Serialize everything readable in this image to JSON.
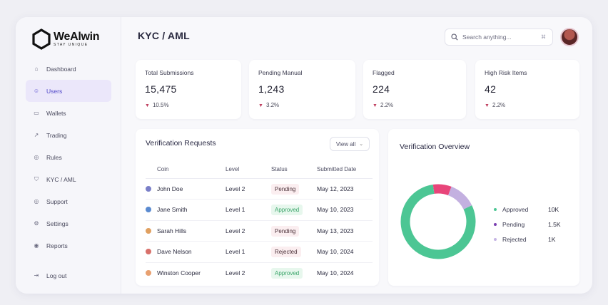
{
  "brand": {
    "name": "WeAlwin",
    "tagline": "STAY UNIQUE"
  },
  "sidebar": {
    "items": [
      {
        "label": "Dashboard",
        "icon": "home-icon",
        "active": false
      },
      {
        "label": "Users",
        "icon": "users-icon",
        "active": true
      },
      {
        "label": "Wallets",
        "icon": "wallet-icon",
        "active": false
      },
      {
        "label": "Trading",
        "icon": "trending-icon",
        "active": false
      },
      {
        "label": "Rules",
        "icon": "rules-icon",
        "active": false
      },
      {
        "label": "KYC / AML",
        "icon": "shield-icon",
        "active": false
      },
      {
        "label": "Support",
        "icon": "support-icon",
        "active": false
      },
      {
        "label": "Settings",
        "icon": "gear-icon",
        "active": false
      },
      {
        "label": "Reports",
        "icon": "report-icon",
        "active": false
      }
    ],
    "logout_label": "Log out"
  },
  "header": {
    "title": "KYC / AML",
    "search_placeholder": "Search anything...",
    "search_shortcut": "⌘"
  },
  "stats": [
    {
      "label": "Total Submissions",
      "value": "15,475",
      "delta": "10.5%"
    },
    {
      "label": "Pending Manual",
      "value": "1,243",
      "delta": "3.2%"
    },
    {
      "label": "Flagged",
      "value": "224",
      "delta": "2.2%"
    },
    {
      "label": "High Risk Items",
      "value": "42",
      "delta": "2.2%"
    }
  ],
  "requests": {
    "title": "Verification Requests",
    "view_all": "View all",
    "columns": [
      "Coin",
      "Level",
      "Status",
      "Submitted Date"
    ],
    "rows": [
      {
        "name": "John Doe",
        "level": "Level 2",
        "status": "Pending",
        "date": "May 12, 2023",
        "dot": "#7a7fc8"
      },
      {
        "name": "Jane Smith",
        "level": "Level 1",
        "status": "Approved",
        "date": "May 10, 2023",
        "dot": "#5a8ad0"
      },
      {
        "name": "Sarah Hills",
        "level": "Level 2",
        "status": "Pending",
        "date": "May 13, 2023",
        "dot": "#e0a060"
      },
      {
        "name": "Dave Nelson",
        "level": "Level 1",
        "status": "Rejected",
        "date": "May 10, 2024",
        "dot": "#d8706a"
      },
      {
        "name": "Winston Cooper",
        "level": "Level 2",
        "status": "Approved",
        "date": "May 10, 2024",
        "dot": "#e8a070"
      }
    ]
  },
  "overview": {
    "title": "Verification Overview",
    "legend": [
      {
        "label": "Approved",
        "value": "10K",
        "color": "#4cc694"
      },
      {
        "label": "Pending",
        "value": "1.5K",
        "color": "#7a3fb0"
      },
      {
        "label": "Rejected",
        "value": "1K",
        "color": "#c5b4e4"
      }
    ],
    "chart_data": {
      "type": "pie",
      "donut": true,
      "categories": [
        "Approved",
        "Pending",
        "Rejected"
      ],
      "values": [
        10000,
        1500,
        1000
      ],
      "colors": [
        "#4cc694",
        "#c3b0e0",
        "#e8457a"
      ]
    }
  }
}
